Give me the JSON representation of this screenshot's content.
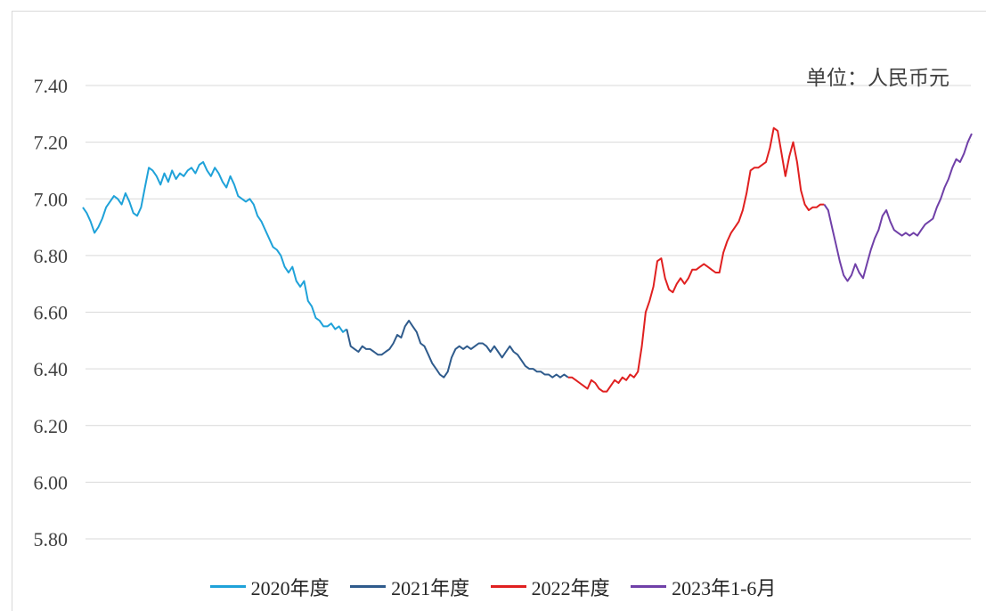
{
  "unit_label": "单位：人民币元",
  "chart_data": {
    "type": "line",
    "title": "",
    "xlabel": "",
    "ylabel": "",
    "ylim": [
      5.8,
      7.4
    ],
    "yticks": [
      "7.40",
      "7.20",
      "7.00",
      "6.80",
      "6.60",
      "6.40",
      "6.20",
      "6.00",
      "5.80"
    ],
    "grid": true,
    "legend_position": "bottom",
    "series": [
      {
        "name": "2020年度",
        "color": "#1fa2d9",
        "values": [
          6.97,
          6.95,
          6.92,
          6.88,
          6.9,
          6.93,
          6.97,
          6.99,
          7.01,
          7.0,
          6.98,
          7.02,
          6.99,
          6.95,
          6.94,
          6.97,
          7.04,
          7.11,
          7.1,
          7.08,
          7.05,
          7.09,
          7.06,
          7.1,
          7.07,
          7.09,
          7.08,
          7.1,
          7.11,
          7.09,
          7.12,
          7.13,
          7.1,
          7.08,
          7.11,
          7.09,
          7.06,
          7.04,
          7.08,
          7.05,
          7.01,
          7.0,
          6.99,
          7.0,
          6.98,
          6.94,
          6.92,
          6.89,
          6.86,
          6.83,
          6.82,
          6.8,
          6.76,
          6.74,
          6.76,
          6.71,
          6.69,
          6.71,
          6.64,
          6.62,
          6.58,
          6.57,
          6.55,
          6.55,
          6.56,
          6.54,
          6.55,
          6.53,
          6.54
        ]
      },
      {
        "name": "2021年度",
        "color": "#2f5b8c",
        "values": [
          6.48,
          6.47,
          6.46,
          6.48,
          6.47,
          6.47,
          6.46,
          6.45,
          6.45,
          6.46,
          6.47,
          6.49,
          6.52,
          6.51,
          6.55,
          6.57,
          6.55,
          6.53,
          6.49,
          6.48,
          6.45,
          6.42,
          6.4,
          6.38,
          6.37,
          6.39,
          6.44,
          6.47,
          6.48,
          6.47,
          6.48,
          6.47,
          6.48,
          6.49,
          6.49,
          6.48,
          6.46,
          6.48,
          6.46,
          6.44,
          6.46,
          6.48,
          6.46,
          6.45,
          6.43,
          6.41,
          6.4,
          6.4,
          6.39,
          6.39,
          6.38,
          6.38,
          6.37,
          6.38,
          6.37,
          6.38,
          6.37
        ]
      },
      {
        "name": "2022年度",
        "color": "#e02020",
        "values": [
          6.37,
          6.36,
          6.35,
          6.34,
          6.33,
          6.36,
          6.35,
          6.33,
          6.32,
          6.32,
          6.34,
          6.36,
          6.35,
          6.37,
          6.36,
          6.38,
          6.37,
          6.39,
          6.48,
          6.6,
          6.64,
          6.69,
          6.78,
          6.79,
          6.72,
          6.68,
          6.67,
          6.7,
          6.72,
          6.7,
          6.72,
          6.75,
          6.75,
          6.76,
          6.77,
          6.76,
          6.75,
          6.74,
          6.74,
          6.81,
          6.85,
          6.88,
          6.9,
          6.92,
          6.96,
          7.02,
          7.1,
          7.11,
          7.11,
          7.12,
          7.13,
          7.18,
          7.25,
          7.24,
          7.16,
          7.08,
          7.15,
          7.2,
          7.13,
          7.03,
          6.98,
          6.96,
          6.97,
          6.97,
          6.98,
          6.98
        ]
      },
      {
        "name": "2023年1-6月",
        "color": "#7040a8",
        "values": [
          6.96,
          6.9,
          6.84,
          6.78,
          6.73,
          6.71,
          6.73,
          6.77,
          6.74,
          6.72,
          6.77,
          6.82,
          6.86,
          6.89,
          6.94,
          6.96,
          6.92,
          6.89,
          6.88,
          6.87,
          6.88,
          6.87,
          6.88,
          6.87,
          6.89,
          6.91,
          6.92,
          6.93,
          6.97,
          7.0,
          7.04,
          7.07,
          7.11,
          7.14,
          7.13,
          7.16,
          7.2,
          7.23
        ]
      }
    ]
  }
}
